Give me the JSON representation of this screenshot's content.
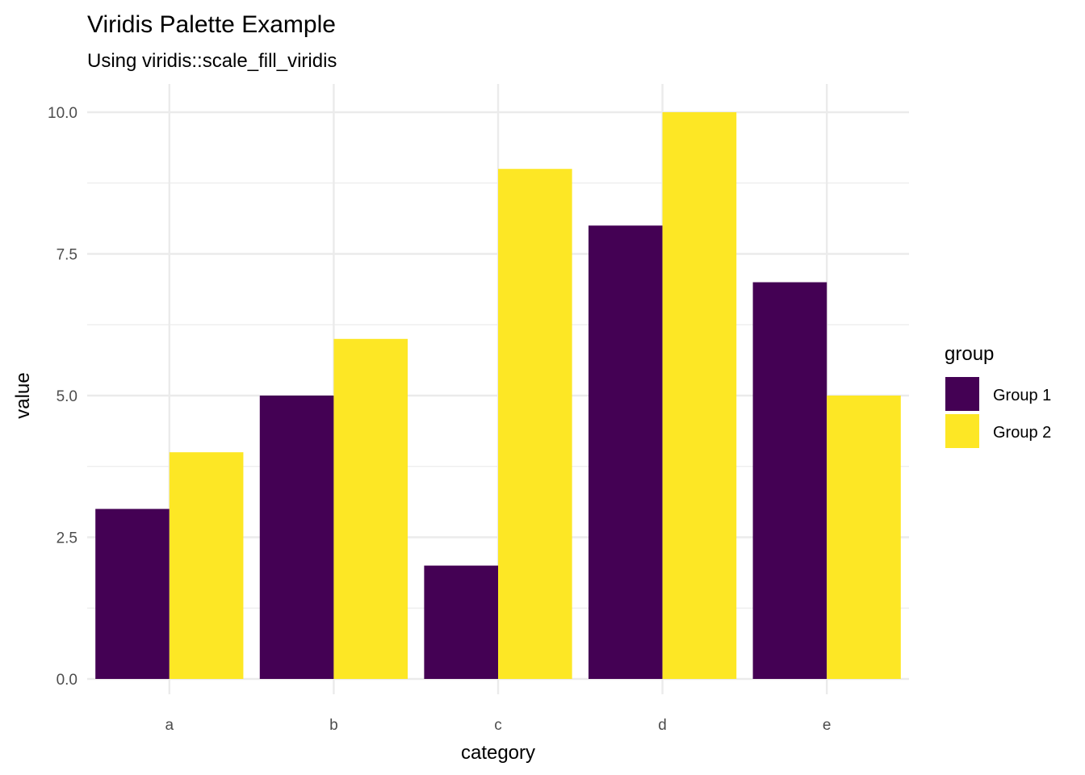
{
  "chart_data": {
    "type": "bar",
    "title": "Viridis Palette Example",
    "subtitle": "Using viridis::scale_fill_viridis",
    "xlabel": "category",
    "ylabel": "value",
    "categories": [
      "a",
      "b",
      "c",
      "d",
      "e"
    ],
    "series": [
      {
        "name": "Group 1",
        "values": [
          3,
          5,
          2,
          8,
          7
        ],
        "color": "#440154"
      },
      {
        "name": "Group 2",
        "values": [
          4,
          6,
          9,
          10,
          5
        ],
        "color": "#FDE725"
      }
    ],
    "ylim": [
      0,
      10
    ],
    "yticks": [
      0,
      2.5,
      5,
      7.5,
      10
    ],
    "ytick_labels": [
      "0.0",
      "2.5",
      "5.0",
      "7.5",
      "10.0"
    ],
    "grid": true,
    "bar_layout": "dodge",
    "legend": {
      "title": "group",
      "position": "right"
    }
  }
}
